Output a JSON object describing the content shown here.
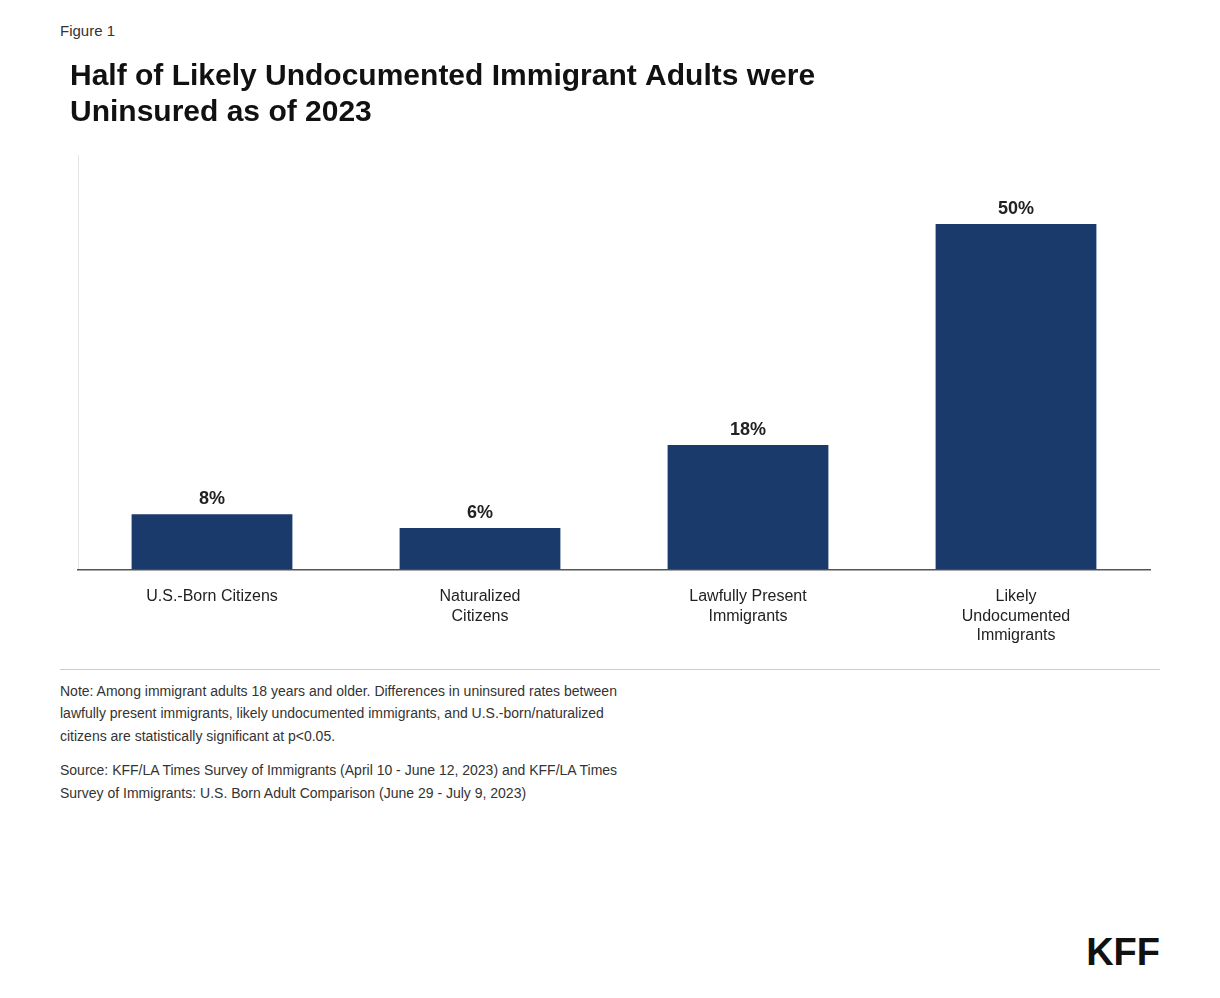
{
  "chart_data": {
    "type": "bar",
    "title": "Half of Likely Undocumented Immigrant Adults were\nUninsured as of 2023",
    "categories": [
      "U.S.-Born Citizens",
      "Naturalized\nCitizens",
      "Lawfully Present\nImmigrants",
      "Likely\nUndocumented\nImmigrants"
    ],
    "values": [
      8,
      6,
      18,
      50
    ],
    "value_labels": [
      "8%",
      "6%",
      "18%",
      "50%"
    ],
    "data_labels": true,
    "color": "#1a3a6b",
    "ylim": [
      0,
      60
    ],
    "grid": false,
    "tick_labels": "x",
    "annotations": [
      "Figure 1",
      "Note: Among immigrant adults 18 years and older. Differences in uninsured rates between\nlawfully present immigrants, likely undocumented immigrants, and U.S.-born/naturalized\ncitizens are statistically significant at p<0.05.",
      "Source: KFF/LA Times Survey of Immigrants (April 10 - June 12, 2023) and KFF/LA Times\nSurvey of Immigrants: U.S. Born Adult Comparison (June 29 - July 9, 2023)",
      "KFF"
    ]
  }
}
